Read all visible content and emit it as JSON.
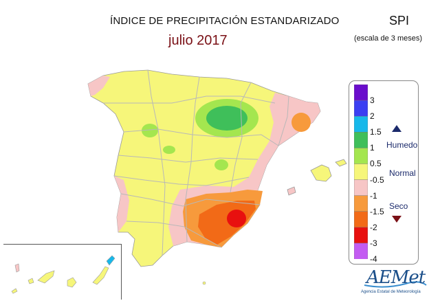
{
  "header": {
    "title": "ÍNDICE DE PRECIPITACIÓN ESTANDARIZADO",
    "period": "julio 2017",
    "index": "SPI",
    "scale": "(escala de 3 meses)"
  },
  "legend": {
    "ticks": [
      "3",
      "2",
      "1.5",
      "1",
      "0.5",
      "-0.5",
      "-1",
      "-1.5",
      "-2",
      "-3",
      "-4"
    ],
    "colors": [
      "#6a0dcc",
      "#3b3ff2",
      "#17b8ea",
      "#3fbf5a",
      "#a4e64f",
      "#f6f67a",
      "#f7c6c6",
      "#f79a3c",
      "#f26a17",
      "#e8100f",
      "#c35cf2"
    ],
    "zones": {
      "wet": "Humedo",
      "normal": "Normal",
      "dry": "Seco"
    },
    "zone_colors": {
      "wet": "#1b2a6b",
      "dry": "#7a1016"
    }
  },
  "map_colors": {
    "normal": "#f6f67a",
    "wet_0_5": "#a4e64f",
    "wet_1": "#3fbf5a",
    "dry_0_5": "#f7c6c6",
    "dry_1": "#f79a3c",
    "dry_1_5": "#f26a17",
    "dry_2": "#e8100f",
    "wet_1_5": "#17b8ea",
    "borders": "#b8b8b8"
  },
  "logo": {
    "name": "AEMet",
    "tagline": "Agencia Estatal de Meteorología"
  }
}
